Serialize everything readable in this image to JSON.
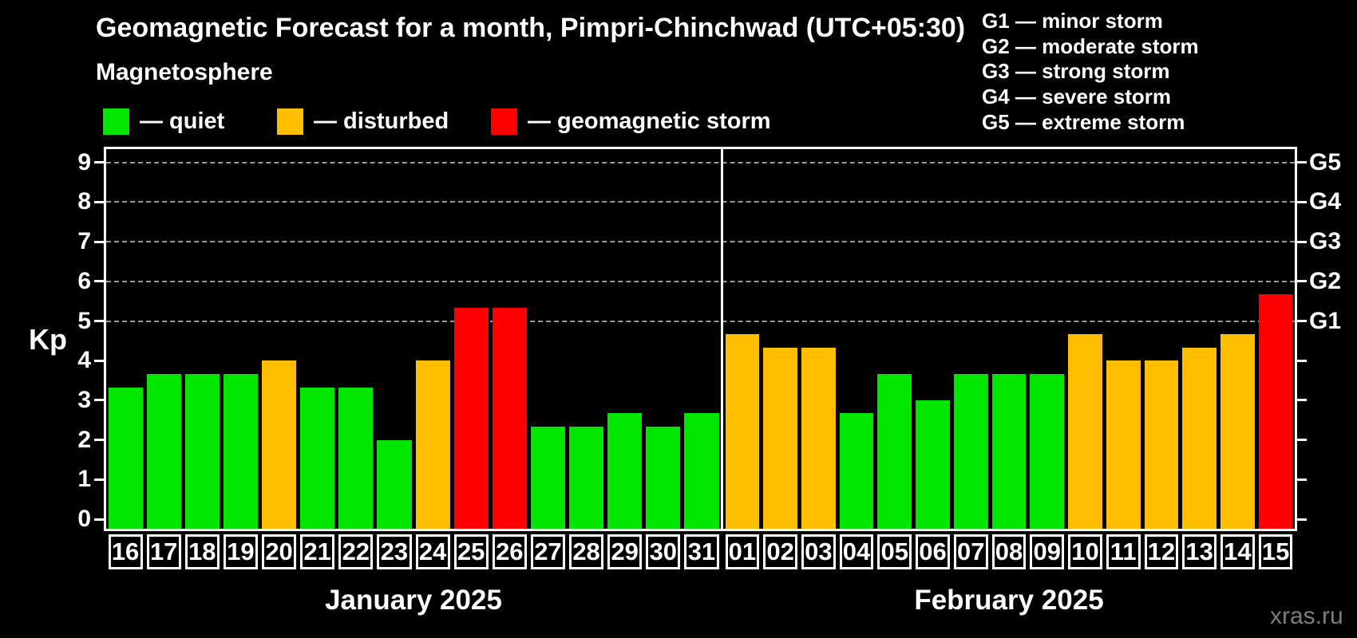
{
  "title": "Geomagnetic Forecast for a month, Pimpri-Chinchwad (UTC+05:30)",
  "subtitle": "Magnetosphere",
  "legend": {
    "items": [
      {
        "key": "quiet",
        "label": "— quiet",
        "color": "#00e600"
      },
      {
        "key": "disturbed",
        "label": "— disturbed",
        "color": "#ffbf00"
      },
      {
        "key": "storm",
        "label": "— geomagnetic storm",
        "color": "#ff0000"
      }
    ]
  },
  "storm_scale_legend": {
    "items": [
      {
        "label": "G1 — minor storm"
      },
      {
        "label": "G2 — moderate storm"
      },
      {
        "label": "G3 — strong storm"
      },
      {
        "label": "G4 — severe storm"
      },
      {
        "label": "G5 — extreme storm"
      }
    ]
  },
  "y_axis": {
    "label": "Kp",
    "ticks": [
      0,
      1,
      2,
      3,
      4,
      5,
      6,
      7,
      8,
      9
    ]
  },
  "right_axis": {
    "labels": [
      {
        "kp": 5,
        "label": "G1"
      },
      {
        "kp": 6,
        "label": "G2"
      },
      {
        "kp": 7,
        "label": "G3"
      },
      {
        "kp": 8,
        "label": "G4"
      },
      {
        "kp": 9,
        "label": "G5"
      }
    ]
  },
  "watermark": "xras.ru",
  "colors": {
    "background": "#000000",
    "axis": "#ffffff",
    "grid": "#999999",
    "quiet": "#00e600",
    "disturbed": "#ffbf00",
    "storm": "#ff0000",
    "watermark": "#7d7d7d"
  },
  "chart_data": {
    "type": "bar",
    "title": "Geomagnetic Forecast for a month, Pimpri-Chinchwad (UTC+05:30)",
    "xlabel": "",
    "ylabel": "Kp",
    "ylim": [
      0,
      9.4
    ],
    "grid": "horizontal dashed lines at Kp 5,6,7,8,9 (G1–G5)",
    "legend_position": "top",
    "months": [
      {
        "label": "January 2025",
        "days": [
          {
            "day": "16",
            "kp": 3.33,
            "status": "quiet"
          },
          {
            "day": "17",
            "kp": 3.67,
            "status": "quiet"
          },
          {
            "day": "18",
            "kp": 3.67,
            "status": "quiet"
          },
          {
            "day": "19",
            "kp": 3.67,
            "status": "quiet"
          },
          {
            "day": "20",
            "kp": 4.0,
            "status": "disturbed"
          },
          {
            "day": "21",
            "kp": 3.33,
            "status": "quiet"
          },
          {
            "day": "22",
            "kp": 3.33,
            "status": "quiet"
          },
          {
            "day": "23",
            "kp": 2.0,
            "status": "quiet"
          },
          {
            "day": "24",
            "kp": 4.0,
            "status": "disturbed"
          },
          {
            "day": "25",
            "kp": 5.33,
            "status": "storm"
          },
          {
            "day": "26",
            "kp": 5.33,
            "status": "storm"
          },
          {
            "day": "27",
            "kp": 2.33,
            "status": "quiet"
          },
          {
            "day": "28",
            "kp": 2.33,
            "status": "quiet"
          },
          {
            "day": "29",
            "kp": 2.67,
            "status": "quiet"
          },
          {
            "day": "30",
            "kp": 2.33,
            "status": "quiet"
          },
          {
            "day": "31",
            "kp": 2.67,
            "status": "quiet"
          }
        ]
      },
      {
        "label": "February 2025",
        "days": [
          {
            "day": "01",
            "kp": 4.67,
            "status": "disturbed"
          },
          {
            "day": "02",
            "kp": 4.33,
            "status": "disturbed"
          },
          {
            "day": "03",
            "kp": 4.33,
            "status": "disturbed"
          },
          {
            "day": "04",
            "kp": 2.67,
            "status": "quiet"
          },
          {
            "day": "05",
            "kp": 3.67,
            "status": "quiet"
          },
          {
            "day": "06",
            "kp": 3.0,
            "status": "quiet"
          },
          {
            "day": "07",
            "kp": 3.67,
            "status": "quiet"
          },
          {
            "day": "08",
            "kp": 3.67,
            "status": "quiet"
          },
          {
            "day": "09",
            "kp": 3.67,
            "status": "quiet"
          },
          {
            "day": "10",
            "kp": 4.67,
            "status": "disturbed"
          },
          {
            "day": "11",
            "kp": 4.0,
            "status": "disturbed"
          },
          {
            "day": "12",
            "kp": 4.0,
            "status": "disturbed"
          },
          {
            "day": "13",
            "kp": 4.33,
            "status": "disturbed"
          },
          {
            "day": "14",
            "kp": 4.67,
            "status": "disturbed"
          },
          {
            "day": "15",
            "kp": 5.67,
            "status": "storm"
          }
        ]
      }
    ]
  }
}
